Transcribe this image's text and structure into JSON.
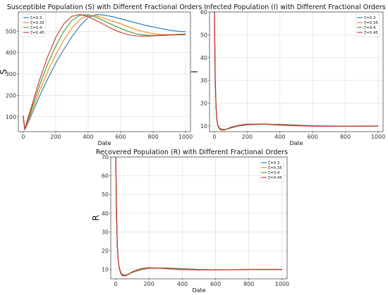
{
  "chart_data": [
    {
      "type": "line",
      "title": "Susceptible Population (S) with Different Fractional Orders",
      "xlabel": "Date",
      "ylabel": "S",
      "xlim": [
        -30,
        1030
      ],
      "ylim": [
        30,
        590
      ],
      "xticks": [
        0,
        200,
        400,
        600,
        800,
        1000
      ],
      "yticks": [
        100,
        200,
        300,
        400,
        500
      ],
      "grid": true,
      "legend_position": "top-left",
      "series": [
        {
          "name": "ζ=0.3",
          "color": "#1f77b4",
          "x": [
            0,
            5,
            10,
            20,
            40,
            60,
            80,
            100,
            150,
            200,
            250,
            300,
            350,
            400,
            450,
            500,
            550,
            600,
            650,
            700,
            750,
            800,
            850,
            900,
            950,
            1000
          ],
          "y": [
            105,
            70,
            40,
            55,
            90,
            125,
            160,
            195,
            275,
            350,
            415,
            475,
            525,
            565,
            578,
            575,
            568,
            558,
            548,
            538,
            528,
            520,
            512,
            505,
            500,
            497
          ]
        },
        {
          "name": "ζ=0.35",
          "color": "#ff7f0e",
          "x": [
            0,
            5,
            10,
            20,
            40,
            60,
            80,
            100,
            150,
            200,
            250,
            300,
            350,
            400,
            450,
            500,
            550,
            600,
            650,
            700,
            750,
            800,
            850,
            900,
            950,
            1000
          ],
          "y": [
            105,
            70,
            40,
            60,
            100,
            140,
            180,
            220,
            310,
            390,
            460,
            515,
            555,
            575,
            572,
            560,
            548,
            535,
            520,
            506,
            496,
            489,
            485,
            484,
            485,
            486
          ]
        },
        {
          "name": "ζ=0.4",
          "color": "#2ca02c",
          "x": [
            0,
            5,
            10,
            20,
            40,
            60,
            80,
            100,
            150,
            200,
            250,
            300,
            350,
            400,
            450,
            500,
            550,
            600,
            650,
            700,
            750,
            800,
            850,
            900,
            950,
            1000
          ],
          "y": [
            105,
            70,
            40,
            65,
            110,
            155,
            200,
            245,
            345,
            430,
            500,
            550,
            575,
            577,
            565,
            548,
            530,
            513,
            498,
            487,
            482,
            480,
            481,
            483,
            485,
            487
          ]
        },
        {
          "name": "ζ=0.45",
          "color": "#d62728",
          "x": [
            0,
            5,
            10,
            20,
            40,
            60,
            80,
            100,
            150,
            200,
            250,
            300,
            350,
            400,
            450,
            500,
            550,
            600,
            650,
            700,
            750,
            800,
            850,
            900,
            950,
            1000
          ],
          "y": [
            105,
            70,
            40,
            70,
            120,
            170,
            220,
            270,
            380,
            470,
            535,
            570,
            578,
            568,
            550,
            530,
            510,
            494,
            483,
            478,
            477,
            478,
            480,
            482,
            483,
            484
          ]
        }
      ]
    },
    {
      "type": "line",
      "title": "Infected Population (I) with Different Fractional Orders",
      "xlabel": "Date",
      "ylabel": "I",
      "xlim": [
        -30,
        1030
      ],
      "ylim": [
        7.5,
        60
      ],
      "xticks": [
        0,
        200,
        400,
        600,
        800,
        1000
      ],
      "yticks": [
        10,
        20,
        30,
        40,
        50,
        60
      ],
      "grid": true,
      "legend_position": "top-right",
      "series": [
        {
          "name": "ζ=0.3",
          "color": "#1f77b4",
          "x": [
            0,
            5,
            10,
            15,
            20,
            30,
            40,
            60,
            80,
            100,
            150,
            200,
            300,
            400,
            500,
            600,
            700,
            800,
            900,
            1000
          ],
          "y": [
            60,
            30,
            18,
            13,
            10.5,
            9.2,
            8.7,
            8.5,
            8.7,
            9.1,
            10,
            10.5,
            10.8,
            10.7,
            10.4,
            10.1,
            10.0,
            9.9,
            9.9,
            9.9
          ]
        },
        {
          "name": "ζ=0.35",
          "color": "#ff7f0e",
          "x": [
            0,
            5,
            10,
            15,
            20,
            30,
            40,
            60,
            80,
            100,
            150,
            200,
            300,
            400,
            500,
            600,
            700,
            800,
            900,
            1000
          ],
          "y": [
            60,
            30,
            18,
            13,
            10.4,
            9.0,
            8.5,
            8.4,
            8.7,
            9.2,
            10.1,
            10.6,
            10.9,
            10.6,
            10.3,
            10.0,
            9.9,
            9.9,
            9.9,
            9.9
          ]
        },
        {
          "name": "ζ=0.4",
          "color": "#2ca02c",
          "x": [
            0,
            5,
            10,
            15,
            20,
            30,
            40,
            60,
            80,
            100,
            150,
            200,
            300,
            400,
            500,
            600,
            700,
            800,
            900,
            1000
          ],
          "y": [
            60,
            30,
            18,
            13,
            10.3,
            8.9,
            8.3,
            8.3,
            8.7,
            9.3,
            10.2,
            10.7,
            10.9,
            10.5,
            10.2,
            10.0,
            9.9,
            9.9,
            9.9,
            10.0
          ]
        },
        {
          "name": "ζ=0.45",
          "color": "#d62728",
          "x": [
            0,
            5,
            10,
            15,
            20,
            30,
            40,
            60,
            80,
            100,
            150,
            200,
            300,
            400,
            500,
            600,
            700,
            800,
            900,
            1000
          ],
          "y": [
            60,
            30,
            18,
            13,
            10.2,
            8.8,
            8.2,
            8.2,
            8.8,
            9.4,
            10.3,
            10.8,
            10.8,
            10.4,
            10.1,
            9.9,
            9.9,
            9.9,
            10.0,
            10.0
          ]
        }
      ]
    },
    {
      "type": "line",
      "title": "Recovered Population (R) with Different Fractional Orders",
      "xlabel": "Date",
      "ylabel": "R",
      "xlim": [
        -30,
        1030
      ],
      "ylim": [
        5,
        70
      ],
      "xticks": [
        0,
        200,
        400,
        600,
        800,
        1000
      ],
      "yticks": [
        10,
        20,
        30,
        40,
        50,
        60,
        70
      ],
      "grid": true,
      "legend_position": "top-right",
      "series": [
        {
          "name": "ζ=0.3",
          "color": "#1f77b4",
          "x": [
            0,
            5,
            10,
            15,
            20,
            30,
            40,
            60,
            80,
            100,
            150,
            200,
            300,
            400,
            500,
            600,
            700,
            800,
            900,
            1000
          ],
          "y": [
            70,
            38,
            22,
            15,
            11.5,
            8.5,
            7.3,
            7.0,
            7.6,
            8.4,
            9.8,
            10.6,
            10.8,
            10.4,
            10.0,
            9.8,
            9.8,
            9.9,
            9.9,
            9.9
          ]
        },
        {
          "name": "ζ=0.35",
          "color": "#ff7f0e",
          "x": [
            0,
            5,
            10,
            15,
            20,
            30,
            40,
            60,
            80,
            100,
            150,
            200,
            300,
            400,
            500,
            600,
            700,
            800,
            900,
            1000
          ],
          "y": [
            70,
            38,
            22,
            15,
            11.3,
            8.2,
            7.0,
            6.8,
            7.5,
            8.5,
            10.0,
            10.8,
            10.7,
            10.2,
            9.9,
            9.8,
            9.8,
            9.9,
            10.0,
            10.0
          ]
        },
        {
          "name": "ζ=0.4",
          "color": "#2ca02c",
          "x": [
            0,
            5,
            10,
            15,
            20,
            30,
            40,
            60,
            80,
            100,
            150,
            200,
            300,
            400,
            500,
            600,
            700,
            800,
            900,
            1000
          ],
          "y": [
            70,
            38,
            22,
            15,
            11.1,
            8.0,
            6.8,
            6.7,
            7.5,
            8.6,
            10.2,
            10.9,
            10.6,
            10.0,
            9.8,
            9.8,
            9.9,
            10.0,
            10.0,
            10.0
          ]
        },
        {
          "name": "ζ=0.45",
          "color": "#d62728",
          "x": [
            0,
            5,
            10,
            15,
            20,
            30,
            40,
            60,
            80,
            100,
            150,
            200,
            300,
            400,
            500,
            600,
            700,
            800,
            900,
            1000
          ],
          "y": [
            70,
            38,
            22,
            15,
            10.9,
            7.8,
            6.6,
            6.6,
            7.6,
            8.8,
            10.4,
            11.0,
            10.5,
            9.9,
            9.7,
            9.8,
            9.9,
            10.0,
            10.0,
            10.0
          ]
        }
      ]
    }
  ]
}
